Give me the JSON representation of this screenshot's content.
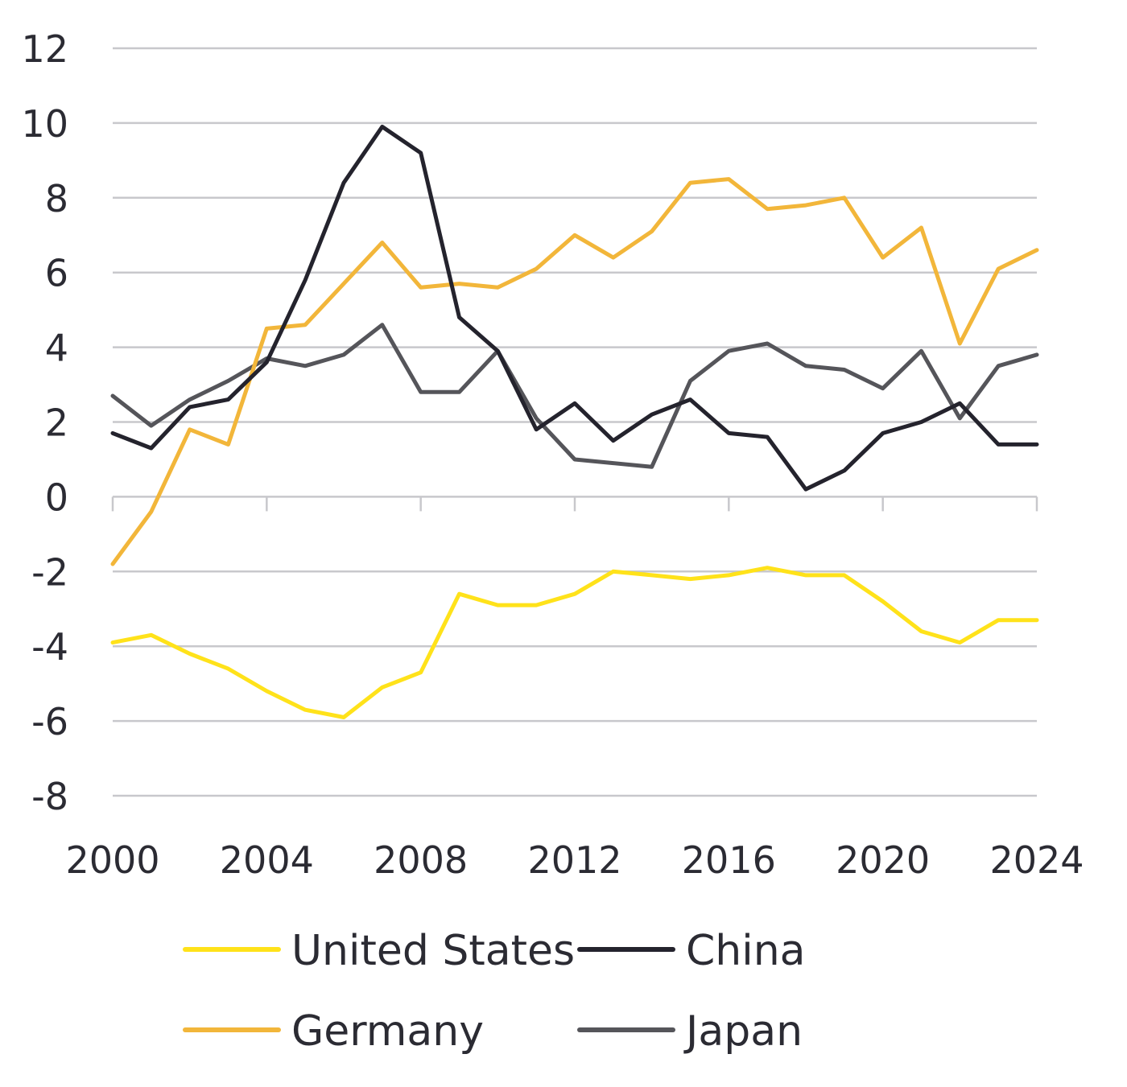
{
  "chart_data": {
    "type": "line",
    "title": "",
    "xlabel": "",
    "ylabel": "",
    "x": [
      2000,
      2001,
      2002,
      2003,
      2004,
      2005,
      2006,
      2007,
      2008,
      2009,
      2010,
      2011,
      2012,
      2013,
      2014,
      2015,
      2016,
      2017,
      2018,
      2019,
      2020,
      2021,
      2022,
      2023,
      2024
    ],
    "xlim": [
      2000,
      2024
    ],
    "ylim": [
      -8,
      12
    ],
    "y_ticks": [
      "12",
      "10",
      "8",
      "6",
      "4",
      "2",
      "0",
      "-2",
      "-4",
      "-6",
      "-8"
    ],
    "x_ticks": [
      "2000",
      "2004",
      "2008",
      "2012",
      "2016",
      "2020",
      "2024"
    ],
    "grid": true,
    "legend_position": "bottom",
    "series": [
      {
        "name": "United States",
        "color": "#ffe21a",
        "values": [
          -3.9,
          -3.7,
          -4.2,
          -4.6,
          -5.2,
          -5.7,
          -5.9,
          -5.1,
          -4.7,
          -2.6,
          -2.9,
          -2.9,
          -2.6,
          -2.0,
          -2.1,
          -2.2,
          -2.1,
          -1.9,
          -2.1,
          -2.1,
          -2.8,
          -3.6,
          -3.9,
          -3.3,
          -3.3
        ]
      },
      {
        "name": "China",
        "color": "#24232d",
        "values": [
          1.7,
          1.3,
          2.4,
          2.6,
          3.6,
          5.8,
          8.4,
          9.9,
          9.2,
          4.8,
          3.9,
          1.8,
          2.5,
          1.5,
          2.2,
          2.6,
          1.7,
          1.6,
          0.2,
          0.7,
          1.7,
          2.0,
          2.5,
          1.4,
          1.4
        ]
      },
      {
        "name": "Germany",
        "color": "#f2b63a",
        "values": [
          -1.8,
          -0.4,
          1.8,
          1.4,
          4.5,
          4.6,
          5.7,
          6.8,
          5.6,
          5.7,
          5.6,
          6.1,
          7.0,
          6.4,
          7.1,
          8.4,
          8.5,
          7.7,
          7.8,
          8.0,
          6.4,
          7.2,
          4.1,
          6.1,
          6.6
        ]
      },
      {
        "name": "Japan",
        "color": "#55555a",
        "values": [
          2.7,
          1.9,
          2.6,
          3.1,
          3.7,
          3.5,
          3.8,
          4.6,
          2.8,
          2.8,
          3.9,
          2.1,
          1.0,
          0.9,
          0.8,
          3.1,
          3.9,
          4.1,
          3.5,
          3.4,
          2.9,
          3.9,
          2.1,
          3.5,
          3.8
        ]
      }
    ]
  }
}
